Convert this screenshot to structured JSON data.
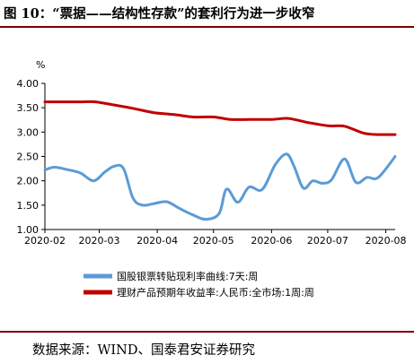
{
  "figure": {
    "title": "图 10：“票据——结构性存款”的套利行为进一步收窄",
    "source": "数据来源：WIND、国泰君安证券研究"
  },
  "chart_data": {
    "type": "line",
    "title": "",
    "ylabel": "%",
    "xlabel": "",
    "ylim": [
      1.0,
      4.0
    ],
    "yticks": [
      "4.00",
      "3.50",
      "3.00",
      "2.50",
      "2.00",
      "1.50",
      "1.00"
    ],
    "xticks": [
      {
        "label": "2020-02",
        "x": "2020-02-01"
      },
      {
        "label": "2020-03",
        "x": "2020-03-01"
      },
      {
        "label": "2020-04",
        "x": "2020-04-01"
      },
      {
        "label": "2020-05",
        "x": "2020-05-01"
      },
      {
        "label": "2020-06",
        "x": "2020-06-01"
      },
      {
        "label": "2020-07",
        "x": "2020-07-01"
      },
      {
        "label": "2020-08",
        "x": "2020-08-01"
      }
    ],
    "xlim": [
      "2020-02-01",
      "2020-08-06"
    ],
    "grid": false,
    "legend_position": "bottom",
    "series": [
      {
        "name": "国股银票转贴现利率曲线:7天:周",
        "color": "#5b9bd5",
        "points": [
          {
            "x": "2020-02-01",
            "y": 2.22
          },
          {
            "x": "2020-02-06",
            "y": 2.28
          },
          {
            "x": "2020-02-13",
            "y": 2.23
          },
          {
            "x": "2020-02-20",
            "y": 2.16
          },
          {
            "x": "2020-02-27",
            "y": 2.0
          },
          {
            "x": "2020-03-04",
            "y": 2.18
          },
          {
            "x": "2020-03-09",
            "y": 2.3
          },
          {
            "x": "2020-03-14",
            "y": 2.25
          },
          {
            "x": "2020-03-19",
            "y": 1.65
          },
          {
            "x": "2020-03-24",
            "y": 1.5
          },
          {
            "x": "2020-03-30",
            "y": 1.53
          },
          {
            "x": "2020-04-06",
            "y": 1.57
          },
          {
            "x": "2020-04-13",
            "y": 1.43
          },
          {
            "x": "2020-04-20",
            "y": 1.3
          },
          {
            "x": "2020-04-27",
            "y": 1.21
          },
          {
            "x": "2020-05-04",
            "y": 1.33
          },
          {
            "x": "2020-05-08",
            "y": 1.83
          },
          {
            "x": "2020-05-14",
            "y": 1.56
          },
          {
            "x": "2020-05-20",
            "y": 1.87
          },
          {
            "x": "2020-05-27",
            "y": 1.82
          },
          {
            "x": "2020-06-03",
            "y": 2.33
          },
          {
            "x": "2020-06-09",
            "y": 2.55
          },
          {
            "x": "2020-06-13",
            "y": 2.3
          },
          {
            "x": "2020-06-18",
            "y": 1.85
          },
          {
            "x": "2020-06-23",
            "y": 2.0
          },
          {
            "x": "2020-06-28",
            "y": 1.95
          },
          {
            "x": "2020-07-03",
            "y": 2.02
          },
          {
            "x": "2020-07-10",
            "y": 2.45
          },
          {
            "x": "2020-07-16",
            "y": 1.97
          },
          {
            "x": "2020-07-22",
            "y": 2.07
          },
          {
            "x": "2020-07-28",
            "y": 2.07
          },
          {
            "x": "2020-08-06",
            "y": 2.5
          }
        ]
      },
      {
        "name": "理财产品预期年收益率:人民币:全市场:1周:周",
        "color": "#c00000",
        "points": [
          {
            "x": "2020-02-01",
            "y": 3.62
          },
          {
            "x": "2020-02-10",
            "y": 3.62
          },
          {
            "x": "2020-02-20",
            "y": 3.62
          },
          {
            "x": "2020-02-28",
            "y": 3.62
          },
          {
            "x": "2020-03-10",
            "y": 3.55
          },
          {
            "x": "2020-03-20",
            "y": 3.48
          },
          {
            "x": "2020-03-30",
            "y": 3.4
          },
          {
            "x": "2020-04-10",
            "y": 3.36
          },
          {
            "x": "2020-04-20",
            "y": 3.31
          },
          {
            "x": "2020-05-01",
            "y": 3.31
          },
          {
            "x": "2020-05-10",
            "y": 3.26
          },
          {
            "x": "2020-05-20",
            "y": 3.26
          },
          {
            "x": "2020-06-01",
            "y": 3.26
          },
          {
            "x": "2020-06-10",
            "y": 3.28
          },
          {
            "x": "2020-06-20",
            "y": 3.2
          },
          {
            "x": "2020-07-01",
            "y": 3.13
          },
          {
            "x": "2020-07-10",
            "y": 3.12
          },
          {
            "x": "2020-07-20",
            "y": 2.98
          },
          {
            "x": "2020-07-28",
            "y": 2.95
          },
          {
            "x": "2020-08-06",
            "y": 2.95
          }
        ]
      }
    ]
  }
}
